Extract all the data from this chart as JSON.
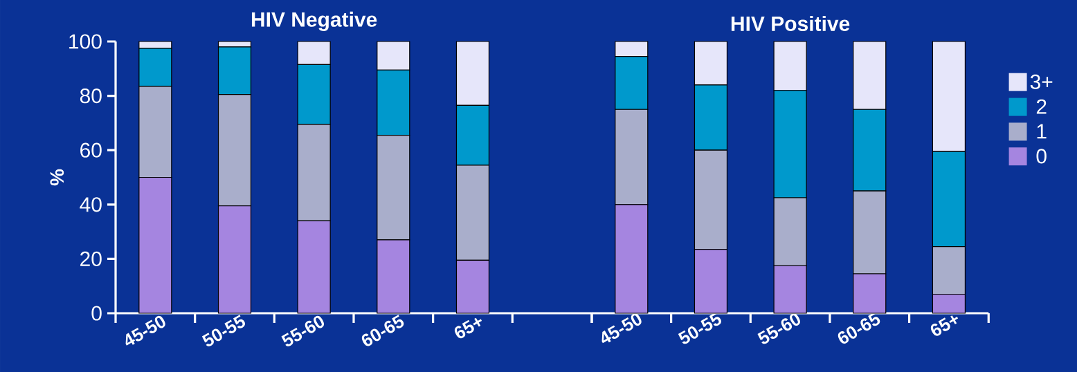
{
  "chart_data": [
    {
      "type": "bar",
      "stacked": true,
      "title": "HIV Negative",
      "ylabel": "%",
      "categories": [
        "45-50",
        "50-55",
        "55-60",
        "60-65",
        "65+"
      ],
      "ylim": [
        0,
        100
      ],
      "yticks": [
        0,
        20,
        40,
        60,
        80,
        100
      ],
      "series": [
        {
          "color": "#a585e0",
          "values": [
            50,
            39.5,
            34,
            27,
            19.5
          ]
        },
        {
          "color": "#a9aecb",
          "values": [
            33.5,
            41,
            35.5,
            38.5,
            35
          ]
        },
        {
          "color": "#0099cc",
          "values": [
            14,
            17.5,
            22,
            24,
            22
          ]
        },
        {
          "color": "#e6e6fa",
          "values": [
            2.5,
            2,
            8.5,
            10.5,
            23.5
          ]
        }
      ]
    },
    {
      "type": "bar",
      "stacked": true,
      "title": "HIV Positive",
      "categories": [
        "45-50",
        "50-55",
        "55-60",
        "60-65",
        "65+"
      ],
      "ylim": [
        0,
        100
      ],
      "yticks": [
        0,
        20,
        40,
        60,
        80,
        100
      ],
      "tick_labels": "x",
      "legend": "right",
      "series": [
        {
          "name": "0",
          "color": "#a585e0",
          "values": [
            40,
            23.5,
            17.5,
            14.5,
            7
          ]
        },
        {
          "name": "1",
          "color": "#a9aecb",
          "values": [
            35,
            36.5,
            25,
            30.5,
            17.5
          ]
        },
        {
          "name": "2",
          "color": "#0099cc",
          "values": [
            19.5,
            24,
            39.5,
            30,
            35
          ]
        },
        {
          "name": "3+",
          "color": "#e6e6fa",
          "values": [
            5.5,
            16,
            18,
            25,
            40.5
          ]
        }
      ]
    }
  ]
}
